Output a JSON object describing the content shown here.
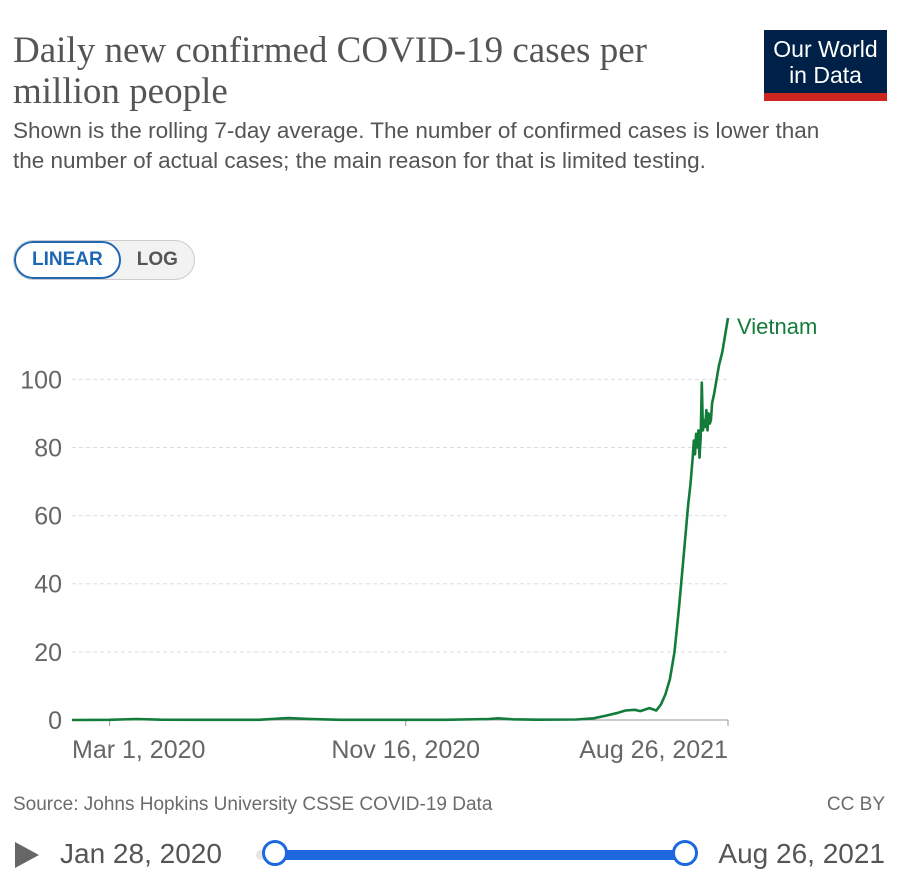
{
  "header": {
    "title": "Daily new confirmed COVID-19 cases per million people",
    "subtitle": "Shown is the rolling 7-day average. The number of confirmed cases is lower than the number of actual cases; the main reason for that is limited testing.",
    "logo_line1": "Our World",
    "logo_line2": "in Data"
  },
  "controls": {
    "linear_label": "LINEAR",
    "log_label": "LOG",
    "active": "LINEAR"
  },
  "footer": {
    "source": "Source: Johns Hopkins University CSSE COVID-19 Data",
    "license": "CC BY"
  },
  "timeline": {
    "start_date": "Jan 28, 2020",
    "end_date": "Aug 26, 2021",
    "range_start_fraction": 0,
    "range_end_fraction": 1
  },
  "colors": {
    "series": "#137c3a",
    "accent": "#1d67e0",
    "grid": "#dddddd"
  },
  "chart_data": {
    "type": "line",
    "title": "Daily new confirmed COVID-19 cases per million people",
    "xlabel": "",
    "ylabel": "",
    "x_range": [
      "2020-01-28",
      "2021-08-26"
    ],
    "ylim": [
      0,
      118
    ],
    "yticks": [
      0,
      20,
      40,
      60,
      80,
      100
    ],
    "xticks": [
      {
        "date": "2020-03-01",
        "label": "Mar 1, 2020"
      },
      {
        "date": "2020-11-16",
        "label": "Nov 16, 2020"
      },
      {
        "date": "2021-08-26",
        "label": "Aug 26, 2021"
      }
    ],
    "grid": true,
    "series": [
      {
        "name": "Vietnam",
        "points": [
          [
            "2020-01-28",
            0
          ],
          [
            "2020-03-01",
            0.05
          ],
          [
            "2020-03-25",
            0.3
          ],
          [
            "2020-04-15",
            0.1
          ],
          [
            "2020-05-20",
            0.05
          ],
          [
            "2020-07-10",
            0.05
          ],
          [
            "2020-07-28",
            0.4
          ],
          [
            "2020-08-05",
            0.55
          ],
          [
            "2020-08-25",
            0.25
          ],
          [
            "2020-09-20",
            0.05
          ],
          [
            "2020-11-16",
            0.05
          ],
          [
            "2020-12-20",
            0.05
          ],
          [
            "2021-01-28",
            0.3
          ],
          [
            "2021-02-05",
            0.5
          ],
          [
            "2021-02-18",
            0.2
          ],
          [
            "2021-03-10",
            0.1
          ],
          [
            "2021-04-15",
            0.15
          ],
          [
            "2021-04-30",
            0.5
          ],
          [
            "2021-05-10",
            1.2
          ],
          [
            "2021-05-20",
            2.0
          ],
          [
            "2021-05-28",
            2.8
          ],
          [
            "2021-06-05",
            3.0
          ],
          [
            "2021-06-10",
            2.6
          ],
          [
            "2021-06-18",
            3.5
          ],
          [
            "2021-06-24",
            2.8
          ],
          [
            "2021-06-28",
            4.5
          ],
          [
            "2021-07-02",
            7.5
          ],
          [
            "2021-07-06",
            12
          ],
          [
            "2021-07-10",
            20
          ],
          [
            "2021-07-14",
            33
          ],
          [
            "2021-07-18",
            48
          ],
          [
            "2021-07-22",
            63
          ],
          [
            "2021-07-24",
            69
          ],
          [
            "2021-07-26",
            77
          ],
          [
            "2021-07-27",
            82
          ],
          [
            "2021-07-28",
            78
          ],
          [
            "2021-07-29",
            84
          ],
          [
            "2021-07-30",
            80
          ],
          [
            "2021-07-31",
            85
          ],
          [
            "2021-08-01",
            77
          ],
          [
            "2021-08-02",
            83
          ],
          [
            "2021-08-03",
            99
          ],
          [
            "2021-08-04",
            85
          ],
          [
            "2021-08-05",
            88
          ],
          [
            "2021-08-06",
            86
          ],
          [
            "2021-08-07",
            91
          ],
          [
            "2021-08-08",
            85
          ],
          [
            "2021-08-09",
            90
          ],
          [
            "2021-08-10",
            87
          ],
          [
            "2021-08-11",
            88
          ],
          [
            "2021-08-12",
            93
          ],
          [
            "2021-08-14",
            96
          ],
          [
            "2021-08-16",
            100
          ],
          [
            "2021-08-18",
            104
          ],
          [
            "2021-08-21",
            108
          ],
          [
            "2021-08-24",
            114
          ],
          [
            "2021-08-26",
            118
          ]
        ]
      }
    ]
  }
}
